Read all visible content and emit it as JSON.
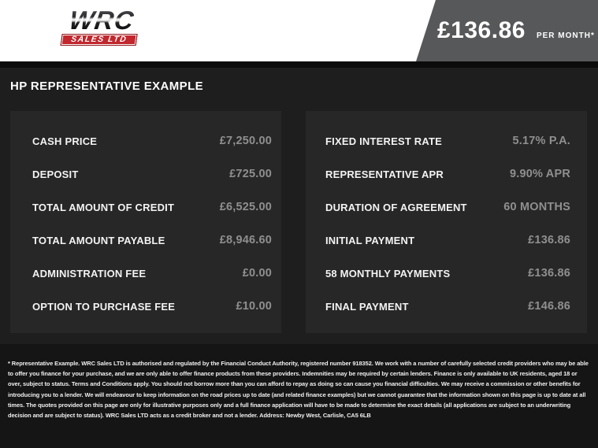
{
  "header": {
    "logo": {
      "brand": "WRC",
      "subtitle": "SALES LTD"
    },
    "price": {
      "amount": "£136.86",
      "per_label": "PER MONTH*"
    }
  },
  "page_title": "HP REPRESENTATIVE EXAMPLE",
  "finance": {
    "left_rows": [
      {
        "label": "CASH PRICE",
        "value": "£7,250.00"
      },
      {
        "label": "DEPOSIT",
        "value": "£725.00"
      },
      {
        "label": "TOTAL AMOUNT OF CREDIT",
        "value": "£6,525.00"
      },
      {
        "label": "TOTAL AMOUNT PAYABLE",
        "value": "£8,946.60"
      },
      {
        "label": "ADMINISTRATION FEE",
        "value": "£0.00"
      },
      {
        "label": "OPTION TO PURCHASE FEE",
        "value": "£10.00"
      }
    ],
    "right_rows": [
      {
        "label": "FIXED INTEREST RATE",
        "value": "5.17% P.A."
      },
      {
        "label": "REPRESENTATIVE APR",
        "value": "9.90% APR"
      },
      {
        "label": "DURATION OF AGREEMENT",
        "value": "60 MONTHS"
      },
      {
        "label": "INITIAL PAYMENT",
        "value": "£136.86"
      },
      {
        "label": "58 MONTHLY PAYMENTS",
        "value": "£136.86"
      },
      {
        "label": "FINAL PAYMENT",
        "value": "£146.86"
      }
    ]
  },
  "disclaimer": "* Representative Example. WRC Sales LTD is authorised and regulated by the Financial Conduct Authority, registered number 918352. We work with a number of carefully selected credit providers who may be able to offer you finance for your purchase, and we are only able to offer finance products from these providers. Indemnities may be required by certain lenders. Finance is only available to UK residents, aged 18 or over, subject to status. Terms and Conditions apply. You should not borrow more than you can afford to repay as doing so can cause you financial difficulties. We may receive a commission or other benefits for introducing you to a lender. We will endeavour to keep information on the road prices up to date (and related finance examples) but we cannot guarantee that the information shown on this page is up to date at all times. The quotes provided on this page are only for illustrative purposes only and a full finance application will have to be made to determine the exact details (all applications are subject to an underwriting decision and are subject to status). WRC Sales LTD acts as a credit broker and not a lender. Address: Newby West, Carlisle, CA5 6LB",
  "colors": {
    "page_background": "#1e1e1e",
    "panel_background": "#272727",
    "footer_background": "#151515",
    "header_background": "#ffffff",
    "price_flag_gray": "#57585a",
    "logo_red": "#c1272d",
    "label_text": "#f3f3f3",
    "value_text": "#8f8f8f"
  }
}
